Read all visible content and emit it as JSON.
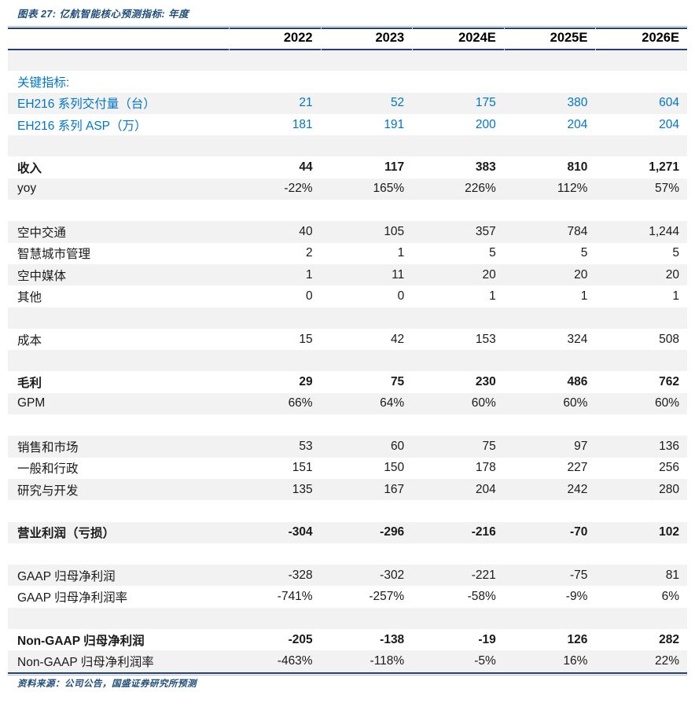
{
  "title": "图表 27:  亿航智能核心预测指标: 年度",
  "footer": "资料来源：公司公告，国盛证券研究所预测",
  "colors": {
    "rule_navy": "#24406E",
    "rule_light_blue": "#A9BCDD",
    "highlight_blue": "#0076C8",
    "title_blue": "#1F4E79",
    "stripe_gray": "#F2F2F2"
  },
  "table": {
    "columns": [
      "2022",
      "2023",
      "2024E",
      "2025E",
      "2026E"
    ],
    "rows": [
      {
        "label": "",
        "values": [
          "",
          "",
          "",
          "",
          ""
        ],
        "style": "blank"
      },
      {
        "label": "关键指标:",
        "values": [
          "",
          "",
          "",
          "",
          ""
        ],
        "style": "blue"
      },
      {
        "label": "EH216 系列交付量（台）",
        "values": [
          "21",
          "52",
          "175",
          "380",
          "604"
        ],
        "style": "blue"
      },
      {
        "label": "EH216 系列 ASP（万）",
        "values": [
          "181",
          "191",
          "200",
          "204",
          "204"
        ],
        "style": "blue"
      },
      {
        "label": "",
        "values": [
          "",
          "",
          "",
          "",
          ""
        ],
        "style": "blank"
      },
      {
        "label": "收入",
        "values": [
          "44",
          "117",
          "383",
          "810",
          "1,271"
        ],
        "style": "bold"
      },
      {
        "label": "yoy",
        "values": [
          "-22%",
          "165%",
          "226%",
          "112%",
          "57%"
        ],
        "style": "normal"
      },
      {
        "label": "",
        "values": [
          "",
          "",
          "",
          "",
          ""
        ],
        "style": "blank"
      },
      {
        "label": "空中交通",
        "values": [
          "40",
          "105",
          "357",
          "784",
          "1,244"
        ],
        "style": "normal"
      },
      {
        "label": "智慧城市管理",
        "values": [
          "2",
          "1",
          "5",
          "5",
          "5"
        ],
        "style": "normal"
      },
      {
        "label": "空中媒体",
        "values": [
          "1",
          "11",
          "20",
          "20",
          "20"
        ],
        "style": "normal"
      },
      {
        "label": "其他",
        "values": [
          "0",
          "0",
          "1",
          "1",
          "1"
        ],
        "style": "normal"
      },
      {
        "label": "",
        "values": [
          "",
          "",
          "",
          "",
          ""
        ],
        "style": "blank"
      },
      {
        "label": "成本",
        "values": [
          "15",
          "42",
          "153",
          "324",
          "508"
        ],
        "style": "normal"
      },
      {
        "label": "",
        "values": [
          "",
          "",
          "",
          "",
          ""
        ],
        "style": "blank"
      },
      {
        "label": "毛利",
        "values": [
          "29",
          "75",
          "230",
          "486",
          "762"
        ],
        "style": "bold"
      },
      {
        "label": "GPM",
        "values": [
          "66%",
          "64%",
          "60%",
          "60%",
          "60%"
        ],
        "style": "normal"
      },
      {
        "label": "",
        "values": [
          "",
          "",
          "",
          "",
          ""
        ],
        "style": "blank"
      },
      {
        "label": "销售和市场",
        "values": [
          "53",
          "60",
          "75",
          "97",
          "136"
        ],
        "style": "normal"
      },
      {
        "label": "一般和行政",
        "values": [
          "151",
          "150",
          "178",
          "227",
          "256"
        ],
        "style": "normal"
      },
      {
        "label": "研究与开发",
        "values": [
          "135",
          "167",
          "204",
          "242",
          "280"
        ],
        "style": "normal"
      },
      {
        "label": "",
        "values": [
          "",
          "",
          "",
          "",
          ""
        ],
        "style": "blank"
      },
      {
        "label": "营业利润（亏损）",
        "values": [
          "-304",
          "-296",
          "-216",
          "-70",
          "102"
        ],
        "style": "bold"
      },
      {
        "label": "",
        "values": [
          "",
          "",
          "",
          "",
          ""
        ],
        "style": "blank"
      },
      {
        "label": "GAAP 归母净利润",
        "values": [
          "-328",
          "-302",
          "-221",
          "-75",
          "81"
        ],
        "style": "normal"
      },
      {
        "label": "GAAP 归母净利润率",
        "values": [
          "-741%",
          "-257%",
          "-58%",
          "-9%",
          "6%"
        ],
        "style": "normal"
      },
      {
        "label": "",
        "values": [
          "",
          "",
          "",
          "",
          ""
        ],
        "style": "blank"
      },
      {
        "label": "Non-GAAP 归母净利润",
        "values": [
          "-205",
          "-138",
          "-19",
          "126",
          "282"
        ],
        "style": "bold"
      },
      {
        "label": "Non-GAAP 归母净利润率",
        "values": [
          "-463%",
          "-118%",
          "-5%",
          "16%",
          "22%"
        ],
        "style": "normal"
      }
    ]
  }
}
